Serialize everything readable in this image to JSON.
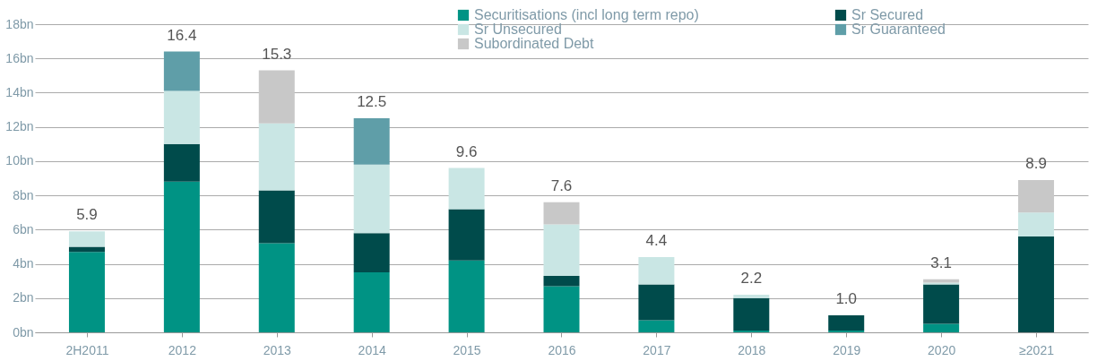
{
  "chart_data": {
    "type": "bar",
    "stacked": true,
    "categories": [
      "2H2011",
      "2012",
      "2013",
      "2014",
      "2015",
      "2016",
      "2017",
      "2018",
      "2019",
      "2020",
      "≥2021"
    ],
    "series": [
      {
        "name": "Securitisations (incl long term repo)",
        "color": "#009384",
        "values": [
          4.7,
          8.8,
          5.2,
          3.5,
          4.2,
          2.7,
          0.7,
          0.1,
          0.1,
          0.5,
          null
        ]
      },
      {
        "name": "Sr Secured",
        "color": "#004b4b",
        "values": [
          0.3,
          2.2,
          3.1,
          2.3,
          3.0,
          0.6,
          2.1,
          1.9,
          0.9,
          2.3,
          5.6
        ]
      },
      {
        "name": "Sr Unsecured",
        "color": "#c9e6e4",
        "values": [
          0.9,
          3.1,
          3.9,
          4.0,
          2.4,
          3.0,
          1.6,
          0.2,
          null,
          0.1,
          1.4
        ]
      },
      {
        "name": "Sr Guaranteed",
        "color": "#5f9ea8",
        "values": [
          null,
          2.3,
          null,
          2.7,
          null,
          null,
          null,
          null,
          null,
          null,
          null
        ]
      },
      {
        "name": "Subordinated Debt",
        "color": "#c8c8c8",
        "values": [
          null,
          null,
          3.1,
          null,
          null,
          1.3,
          null,
          null,
          null,
          0.2,
          1.9
        ]
      }
    ],
    "totals": [
      "5.9",
      "16.4",
      "15.3",
      "12.5",
      "9.6",
      "7.6",
      "4.4",
      "2.2",
      "1.0",
      "3.1",
      "8.9"
    ],
    "ylim": [
      0,
      18
    ],
    "yticks": [
      {
        "value": 0,
        "label": "0bn"
      },
      {
        "value": 2,
        "label": "2bn"
      },
      {
        "value": 4,
        "label": "4bn"
      },
      {
        "value": 6,
        "label": "6bn"
      },
      {
        "value": 8,
        "label": "8bn"
      },
      {
        "value": 10,
        "label": "10bn"
      },
      {
        "value": 12,
        "label": "12bn"
      },
      {
        "value": 14,
        "label": "14bn"
      },
      {
        "value": 16,
        "label": "16bn"
      },
      {
        "value": 18,
        "label": "18bn"
      }
    ],
    "grid": "y",
    "legend": "top"
  }
}
